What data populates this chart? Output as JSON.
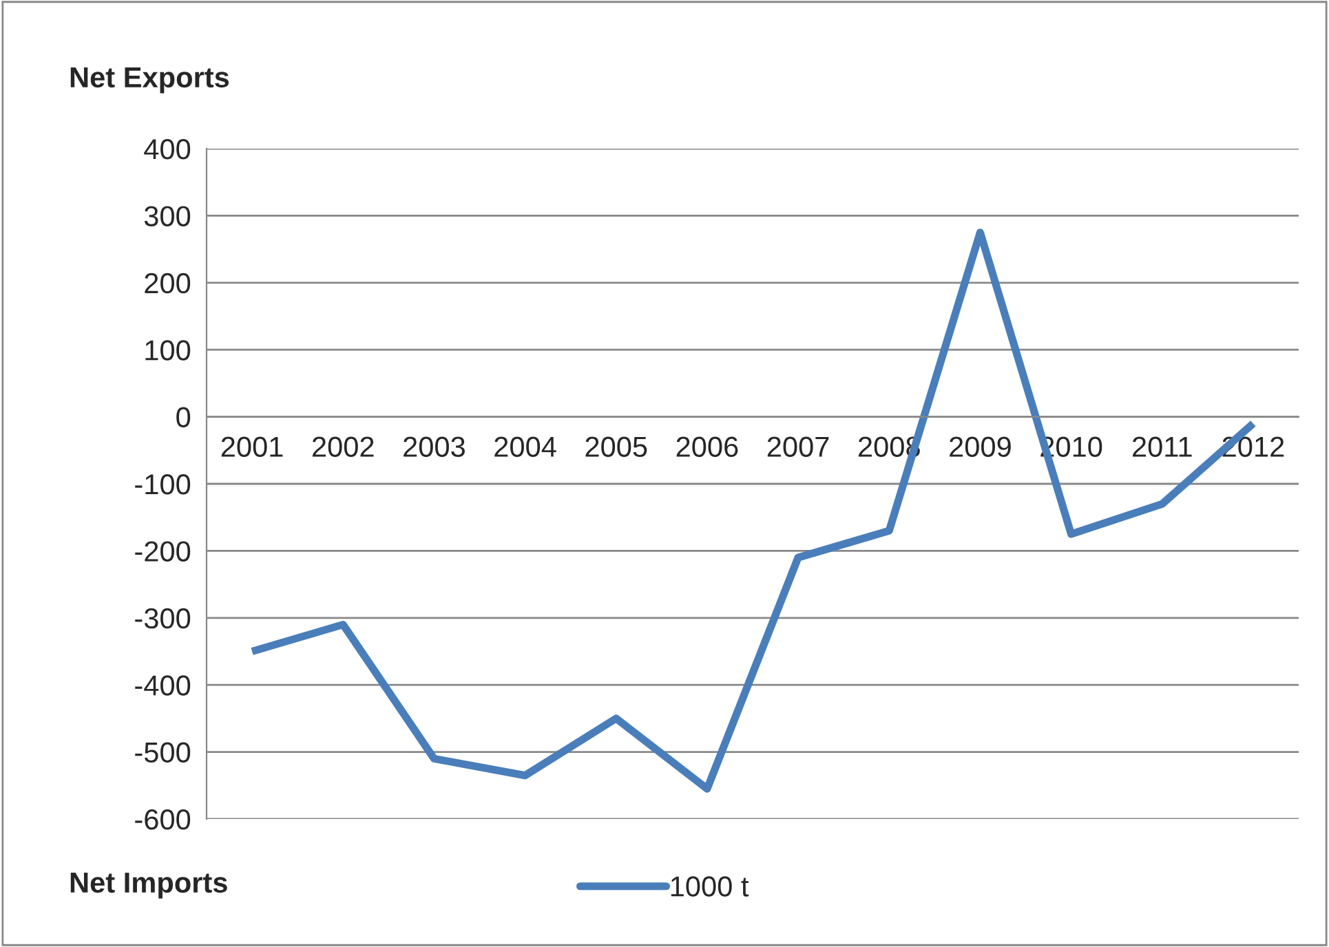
{
  "chart_data": {
    "type": "line",
    "categories": [
      "2001",
      "2002",
      "2003",
      "2004",
      "2005",
      "2006",
      "2007",
      "2008",
      "2009",
      "2010",
      "2011",
      "2012"
    ],
    "series": [
      {
        "name": "1000 t",
        "color": "#4a7ebb",
        "values": [
          -350,
          -310,
          -510,
          -535,
          -450,
          -555,
          -210,
          -170,
          275,
          -175,
          -130,
          -10
        ]
      }
    ],
    "ylim": [
      -600,
      400
    ],
    "yticks": [
      -600,
      -500,
      -400,
      -300,
      -200,
      -100,
      0,
      100,
      200,
      300,
      400
    ],
    "grid": "y",
    "legend": "bottom",
    "marker": "none",
    "line_style": "solid",
    "annotations": [
      "Net Exports",
      "Net Imports"
    ]
  }
}
